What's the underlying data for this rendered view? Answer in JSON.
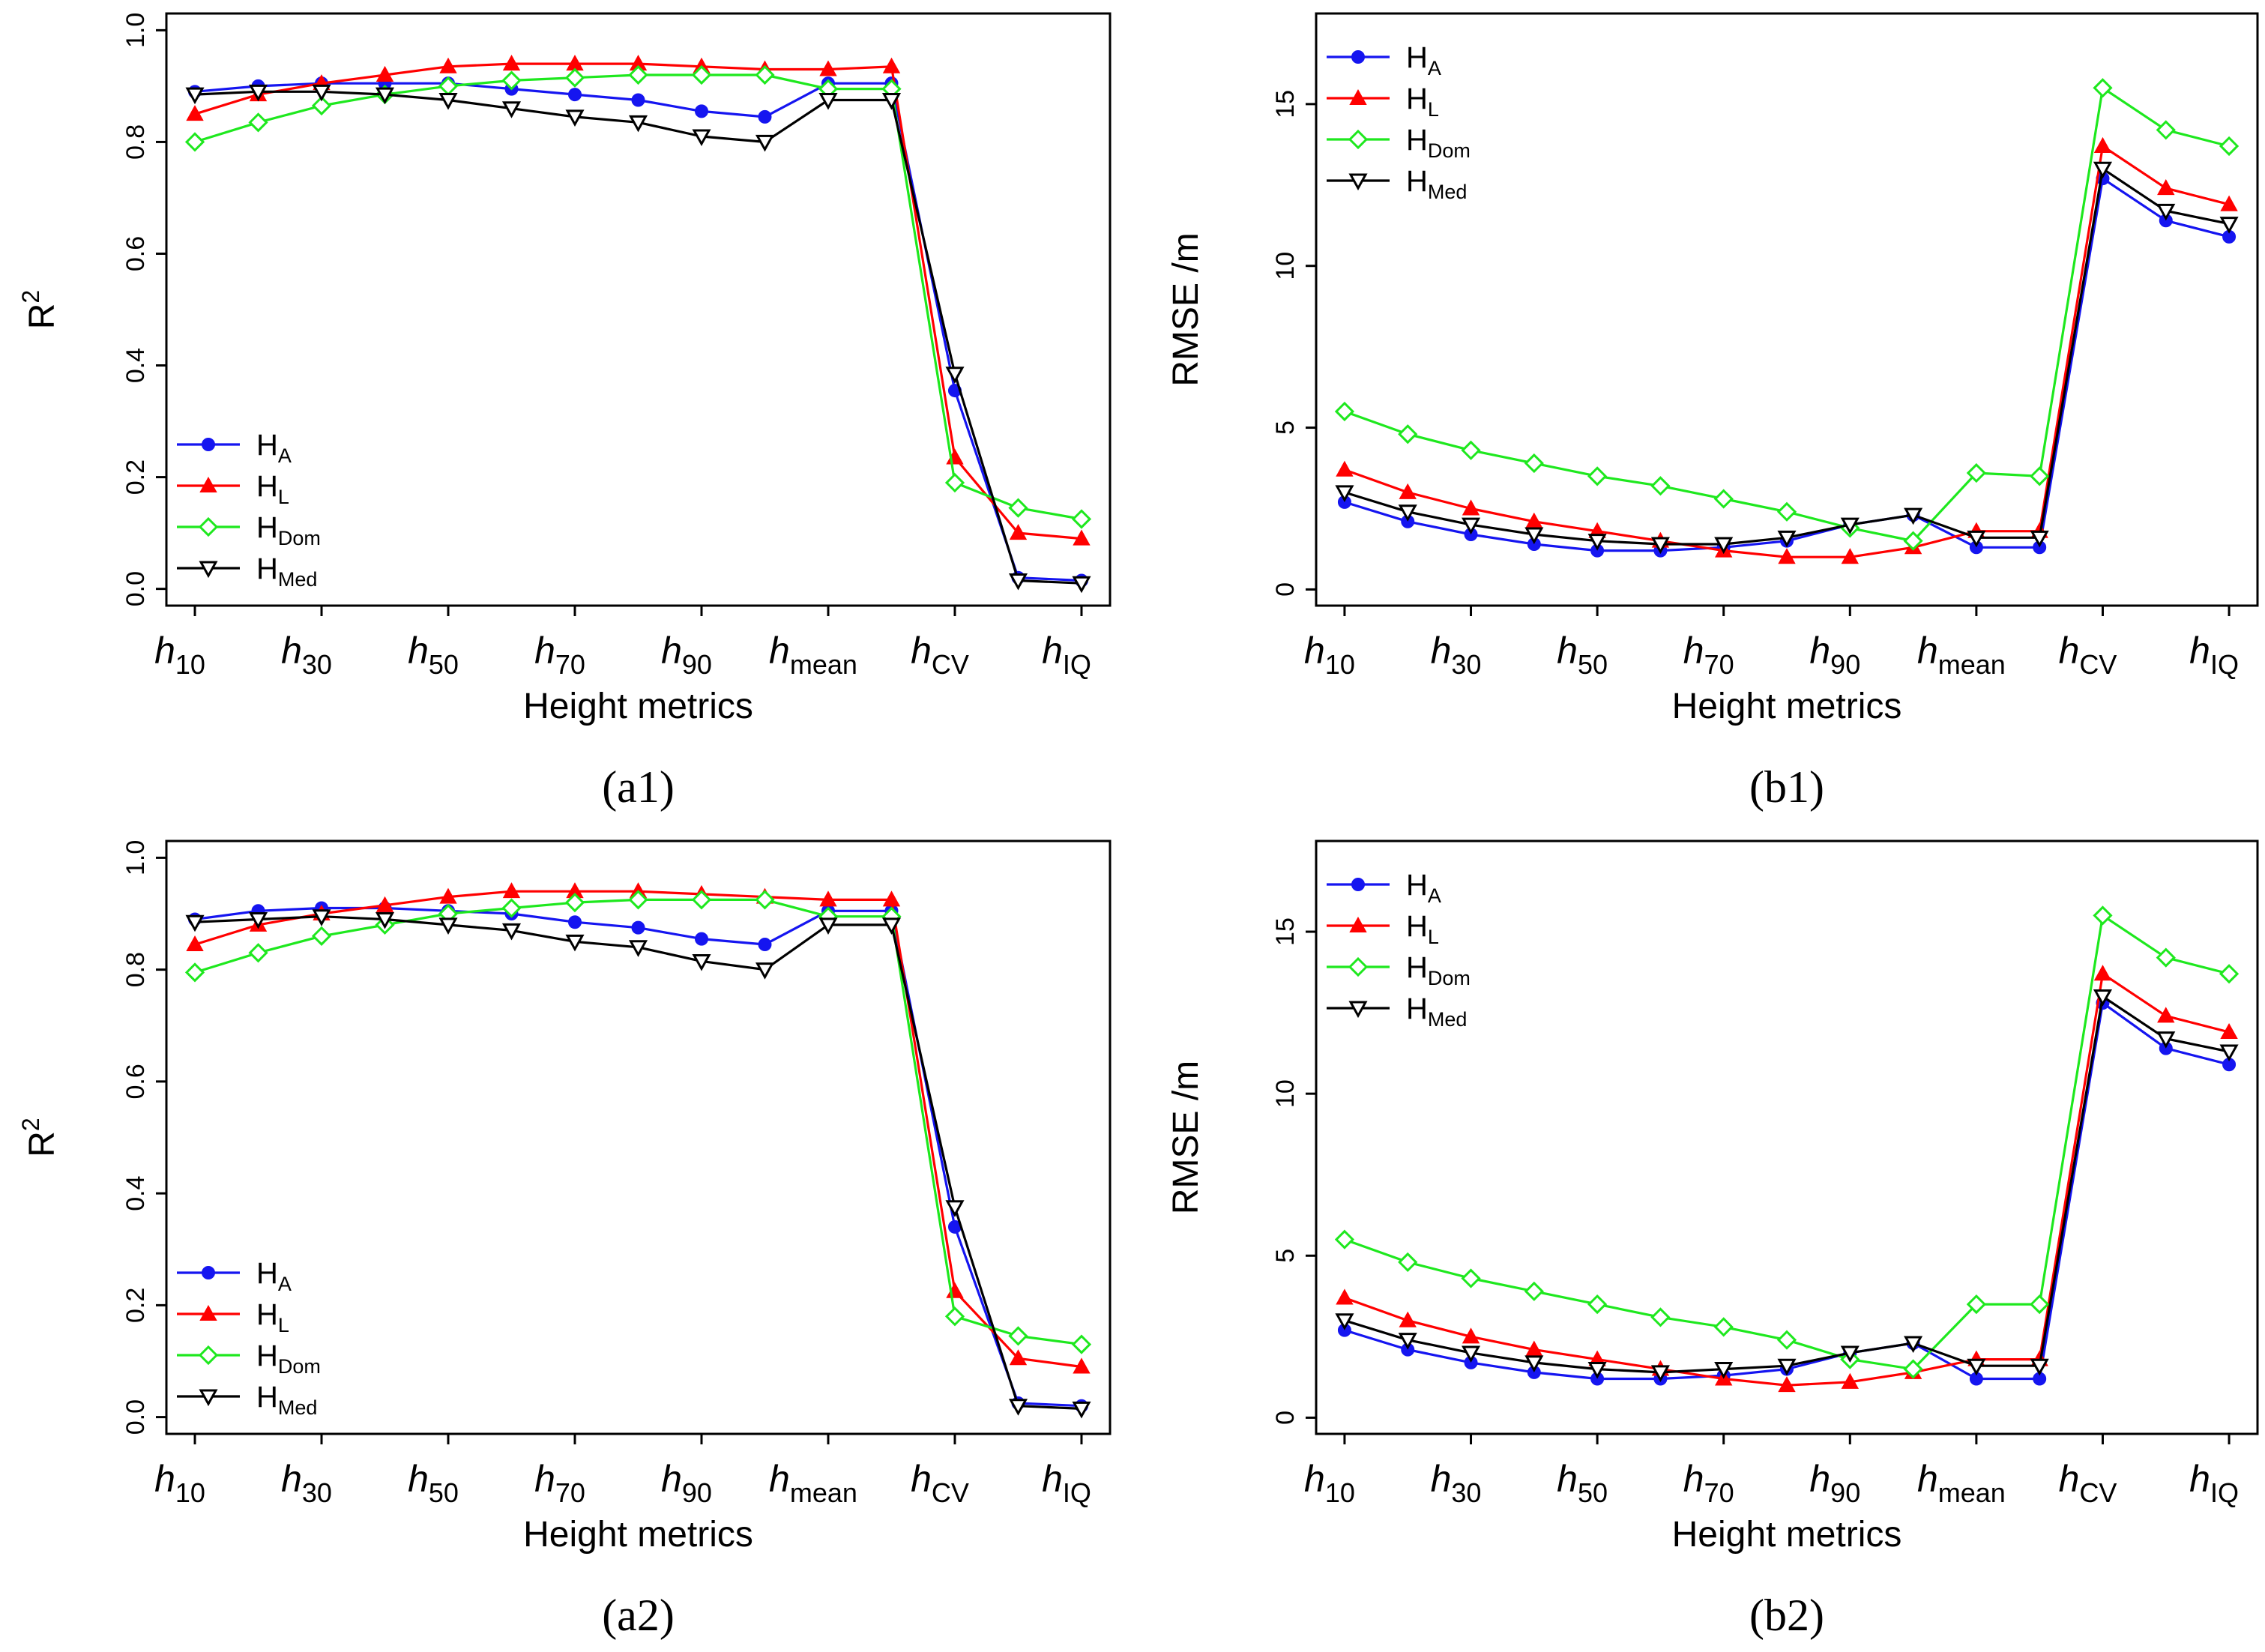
{
  "series_styles": [
    {
      "key": "HA",
      "main": "H",
      "sub": "A",
      "color": "#1515f0",
      "marker": "circle-filled"
    },
    {
      "key": "HL",
      "main": "H",
      "sub": "L",
      "color": "#ff0000",
      "marker": "triangle-up-filled"
    },
    {
      "key": "HDom",
      "main": "H",
      "sub": "Dom",
      "color": "#1ee81e",
      "marker": "diamond-open"
    },
    {
      "key": "HMed",
      "main": "H",
      "sub": "Med",
      "color": "#000000",
      "marker": "triangle-down-open"
    }
  ],
  "x_tick_labels": [
    {
      "main": "h",
      "sub": "10"
    },
    {
      "main": "h",
      "sub": "30"
    },
    {
      "main": "h",
      "sub": "50"
    },
    {
      "main": "h",
      "sub": "70"
    },
    {
      "main": "h",
      "sub": "90"
    },
    {
      "main": "h",
      "sub": "mean"
    },
    {
      "main": "h",
      "sub": "CV"
    },
    {
      "main": "h",
      "sub": "IQ"
    }
  ],
  "chart_data": [
    {
      "id": "a1",
      "type": "line",
      "caption": "(a1)",
      "xlabel": "Height metrics",
      "ylabel": "R",
      "ylabel_sup": "2",
      "x": [
        1,
        2,
        3,
        4,
        5,
        6,
        7,
        8,
        9,
        10,
        11,
        12,
        13,
        14,
        15
      ],
      "x_tick_positions": [
        1,
        3,
        5,
        7,
        9,
        11,
        13,
        15
      ],
      "ylim": [
        -0.03,
        1.03
      ],
      "yticks": [
        "0.0",
        "0.2",
        "0.4",
        "0.6",
        "0.8",
        "1.0"
      ],
      "legend_position": "bottom-left",
      "series": [
        {
          "name": "HA",
          "values": [
            0.89,
            0.9,
            0.905,
            0.905,
            0.905,
            0.895,
            0.885,
            0.875,
            0.855,
            0.845,
            0.905,
            0.905,
            0.355,
            0.02,
            0.015
          ]
        },
        {
          "name": "HL",
          "values": [
            0.85,
            0.885,
            0.905,
            0.92,
            0.935,
            0.94,
            0.94,
            0.94,
            0.935,
            0.93,
            0.93,
            0.935,
            0.235,
            0.1,
            0.09
          ]
        },
        {
          "name": "HDom",
          "values": [
            0.8,
            0.835,
            0.865,
            0.885,
            0.9,
            0.91,
            0.915,
            0.92,
            0.92,
            0.92,
            0.895,
            0.895,
            0.19,
            0.145,
            0.125
          ]
        },
        {
          "name": "HMed",
          "values": [
            0.885,
            0.89,
            0.89,
            0.885,
            0.875,
            0.86,
            0.845,
            0.835,
            0.81,
            0.8,
            0.875,
            0.875,
            0.385,
            0.015,
            0.01
          ]
        }
      ]
    },
    {
      "id": "b1",
      "type": "line",
      "caption": "(b1)",
      "xlabel": "Height metrics",
      "ylabel": "RMSE /m",
      "ylabel_sup": "",
      "x": [
        1,
        2,
        3,
        4,
        5,
        6,
        7,
        8,
        9,
        10,
        11,
        12,
        13,
        14,
        15
      ],
      "x_tick_positions": [
        1,
        3,
        5,
        7,
        9,
        11,
        13,
        15
      ],
      "ylim": [
        -0.5,
        17.8
      ],
      "yticks": [
        "0",
        "5",
        "10",
        "15"
      ],
      "legend_position": "top-left",
      "series": [
        {
          "name": "HA",
          "values": [
            2.7,
            2.1,
            1.7,
            1.4,
            1.2,
            1.2,
            1.3,
            1.5,
            2.0,
            2.3,
            1.3,
            1.3,
            12.7,
            11.4,
            10.9
          ]
        },
        {
          "name": "HL",
          "values": [
            3.7,
            3.0,
            2.5,
            2.1,
            1.8,
            1.5,
            1.2,
            1.0,
            1.0,
            1.3,
            1.8,
            1.8,
            13.7,
            12.4,
            11.9
          ]
        },
        {
          "name": "HDom",
          "values": [
            5.5,
            4.8,
            4.3,
            3.9,
            3.5,
            3.2,
            2.8,
            2.4,
            1.9,
            1.5,
            3.6,
            3.5,
            15.5,
            14.2,
            13.7
          ]
        },
        {
          "name": "HMed",
          "values": [
            3.0,
            2.4,
            2.0,
            1.7,
            1.5,
            1.4,
            1.4,
            1.6,
            2.0,
            2.3,
            1.6,
            1.6,
            13.0,
            11.7,
            11.3
          ]
        }
      ]
    },
    {
      "id": "a2",
      "type": "line",
      "caption": "(a2)",
      "xlabel": "Height metrics",
      "ylabel": "R",
      "ylabel_sup": "2",
      "x": [
        1,
        2,
        3,
        4,
        5,
        6,
        7,
        8,
        9,
        10,
        11,
        12,
        13,
        14,
        15
      ],
      "x_tick_positions": [
        1,
        3,
        5,
        7,
        9,
        11,
        13,
        15
      ],
      "ylim": [
        -0.03,
        1.03
      ],
      "yticks": [
        "0.0",
        "0.2",
        "0.4",
        "0.6",
        "0.8",
        "1.0"
      ],
      "legend_position": "bottom-left",
      "series": [
        {
          "name": "HA",
          "values": [
            0.89,
            0.905,
            0.91,
            0.91,
            0.905,
            0.9,
            0.885,
            0.875,
            0.855,
            0.845,
            0.905,
            0.905,
            0.34,
            0.025,
            0.02
          ]
        },
        {
          "name": "HL",
          "values": [
            0.845,
            0.88,
            0.9,
            0.915,
            0.93,
            0.94,
            0.94,
            0.94,
            0.935,
            0.93,
            0.925,
            0.925,
            0.225,
            0.105,
            0.09
          ]
        },
        {
          "name": "HDom",
          "values": [
            0.795,
            0.83,
            0.86,
            0.88,
            0.9,
            0.91,
            0.92,
            0.925,
            0.925,
            0.925,
            0.895,
            0.895,
            0.18,
            0.145,
            0.13
          ]
        },
        {
          "name": "HMed",
          "values": [
            0.885,
            0.89,
            0.895,
            0.89,
            0.88,
            0.87,
            0.85,
            0.84,
            0.815,
            0.8,
            0.88,
            0.88,
            0.375,
            0.02,
            0.015
          ]
        }
      ]
    },
    {
      "id": "b2",
      "type": "line",
      "caption": "(b2)",
      "xlabel": "Height metrics",
      "ylabel": "RMSE /m",
      "ylabel_sup": "",
      "x": [
        1,
        2,
        3,
        4,
        5,
        6,
        7,
        8,
        9,
        10,
        11,
        12,
        13,
        14,
        15
      ],
      "x_tick_positions": [
        1,
        3,
        5,
        7,
        9,
        11,
        13,
        15
      ],
      "ylim": [
        -0.5,
        17.8
      ],
      "yticks": [
        "0",
        "5",
        "10",
        "15"
      ],
      "legend_position": "top-left",
      "series": [
        {
          "name": "HA",
          "values": [
            2.7,
            2.1,
            1.7,
            1.4,
            1.2,
            1.2,
            1.3,
            1.5,
            2.0,
            2.3,
            1.2,
            1.2,
            12.8,
            11.4,
            10.9
          ]
        },
        {
          "name": "HL",
          "values": [
            3.7,
            3.0,
            2.5,
            2.1,
            1.8,
            1.5,
            1.2,
            1.0,
            1.1,
            1.4,
            1.8,
            1.8,
            13.7,
            12.4,
            11.9
          ]
        },
        {
          "name": "HDom",
          "values": [
            5.5,
            4.8,
            4.3,
            3.9,
            3.5,
            3.1,
            2.8,
            2.4,
            1.8,
            1.5,
            3.5,
            3.5,
            15.5,
            14.2,
            13.7
          ]
        },
        {
          "name": "HMed",
          "values": [
            3.0,
            2.4,
            2.0,
            1.7,
            1.5,
            1.4,
            1.5,
            1.6,
            2.0,
            2.3,
            1.6,
            1.6,
            13.0,
            11.7,
            11.3
          ]
        }
      ]
    }
  ]
}
